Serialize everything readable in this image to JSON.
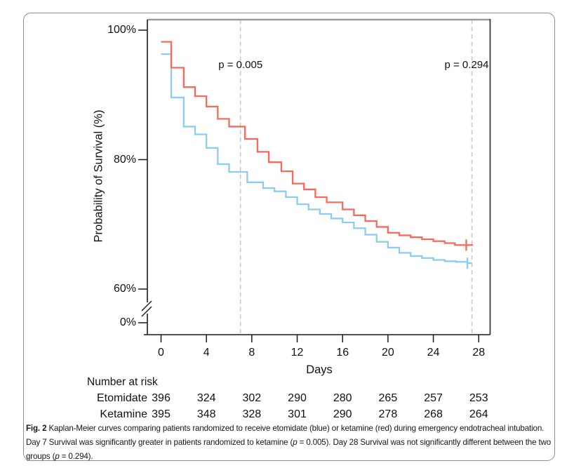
{
  "caption": {
    "label": "Fig. 2",
    "t1": " Kaplan-Meier curves comparing patients randomized to receive etomidate (blue) or ketamine (red) during emergency endotracheal intubation. Day 7 Survival was significantly greater in patients randomized to ketamine (",
    "p1": "p",
    "t2": " = 0.005). Day 28 Survival was not significantly different between the two groups (",
    "p2": "p",
    "t3": " = 0.294)."
  },
  "chart_data": {
    "type": "line",
    "subtype": "kaplan-meier-step",
    "xlabel": "Days",
    "ylabel": "Probability of Survival (%)",
    "xlim": [
      0,
      29
    ],
    "ylim_display": [
      60,
      100
    ],
    "y_axis_break_to_zero": true,
    "grid": false,
    "x_ticks": [
      0,
      4,
      8,
      12,
      16,
      20,
      24,
      28
    ],
    "y_ticks": [
      {
        "label": "100%",
        "pct": 100
      },
      {
        "label": "80%",
        "pct": 80
      },
      {
        "label": "60%",
        "pct": 60
      },
      {
        "label": "0%",
        "pct": 0
      }
    ],
    "annotations": [
      {
        "text": "p = 0.005",
        "day": 7
      },
      {
        "text": "p = 0.294",
        "day": 27.4
      }
    ],
    "dashed_line_days": [
      7,
      27.4
    ],
    "colors": {
      "ketamine": "#f9695b",
      "etomidate": "#8bcdf1",
      "dashed": "#c6c6c6",
      "frame_top": "#9a9a9a",
      "frame_right": "#3b3b3b",
      "axis": "#1a1a1a"
    },
    "series": [
      {
        "name": "Etomidate",
        "color": "#8bcdf1",
        "steps": [
          [
            0,
            96.3
          ],
          [
            0.9,
            89.6
          ],
          [
            2,
            85.1
          ],
          [
            3,
            83.9
          ],
          [
            4,
            81.8
          ],
          [
            5,
            79.3
          ],
          [
            6,
            78.1
          ],
          [
            7.6,
            76.5
          ],
          [
            9,
            75.6
          ],
          [
            10,
            75.1
          ],
          [
            11,
            74.2
          ],
          [
            12,
            73.1
          ],
          [
            13,
            72.3
          ],
          [
            14,
            71.6
          ],
          [
            15,
            70.9
          ],
          [
            16,
            70.3
          ],
          [
            17,
            69.4
          ],
          [
            18,
            68.4
          ],
          [
            19,
            67.3
          ],
          [
            20,
            66.4
          ],
          [
            21,
            65.6
          ],
          [
            22,
            65.1
          ],
          [
            23,
            64.8
          ],
          [
            24,
            64.5
          ],
          [
            25,
            64.3
          ],
          [
            26,
            64.2
          ],
          [
            27,
            64.0
          ]
        ],
        "end_day": 27.4,
        "censor": {
          "day": 27.0,
          "pct": 64.0
        }
      },
      {
        "name": "Ketamine",
        "color": "#f9695b",
        "steps": [
          [
            0,
            98.2
          ],
          [
            0.9,
            94.2
          ],
          [
            2,
            91.2
          ],
          [
            3,
            89.8
          ],
          [
            4,
            88.2
          ],
          [
            5,
            86.3
          ],
          [
            6,
            85.1
          ],
          [
            7.4,
            83.2
          ],
          [
            8.5,
            81.2
          ],
          [
            9.5,
            79.6
          ],
          [
            10.6,
            78.2
          ],
          [
            11.6,
            76.3
          ],
          [
            12.6,
            75.4
          ],
          [
            13.6,
            74.2
          ],
          [
            14.6,
            73.4
          ],
          [
            16,
            72.3
          ],
          [
            17,
            71.4
          ],
          [
            18,
            70.5
          ],
          [
            19,
            69.6
          ],
          [
            20,
            68.7
          ],
          [
            21,
            68.3
          ],
          [
            22,
            68.0
          ],
          [
            23,
            67.7
          ],
          [
            24,
            67.4
          ],
          [
            25,
            67.1
          ],
          [
            25.9,
            66.8
          ]
        ],
        "end_day": 27.5,
        "censor": {
          "day": 26.9,
          "pct": 66.8
        }
      }
    ],
    "number_at_risk": {
      "label": "Number at risk",
      "days": [
        0,
        4,
        8,
        12,
        16,
        20,
        24,
        28
      ],
      "rows": [
        {
          "name": "Etomidate",
          "values": [
            396,
            324,
            302,
            290,
            280,
            265,
            257,
            253
          ]
        },
        {
          "name": "Ketamine",
          "values": [
            395,
            348,
            328,
            301,
            290,
            278,
            268,
            264
          ]
        }
      ]
    }
  }
}
